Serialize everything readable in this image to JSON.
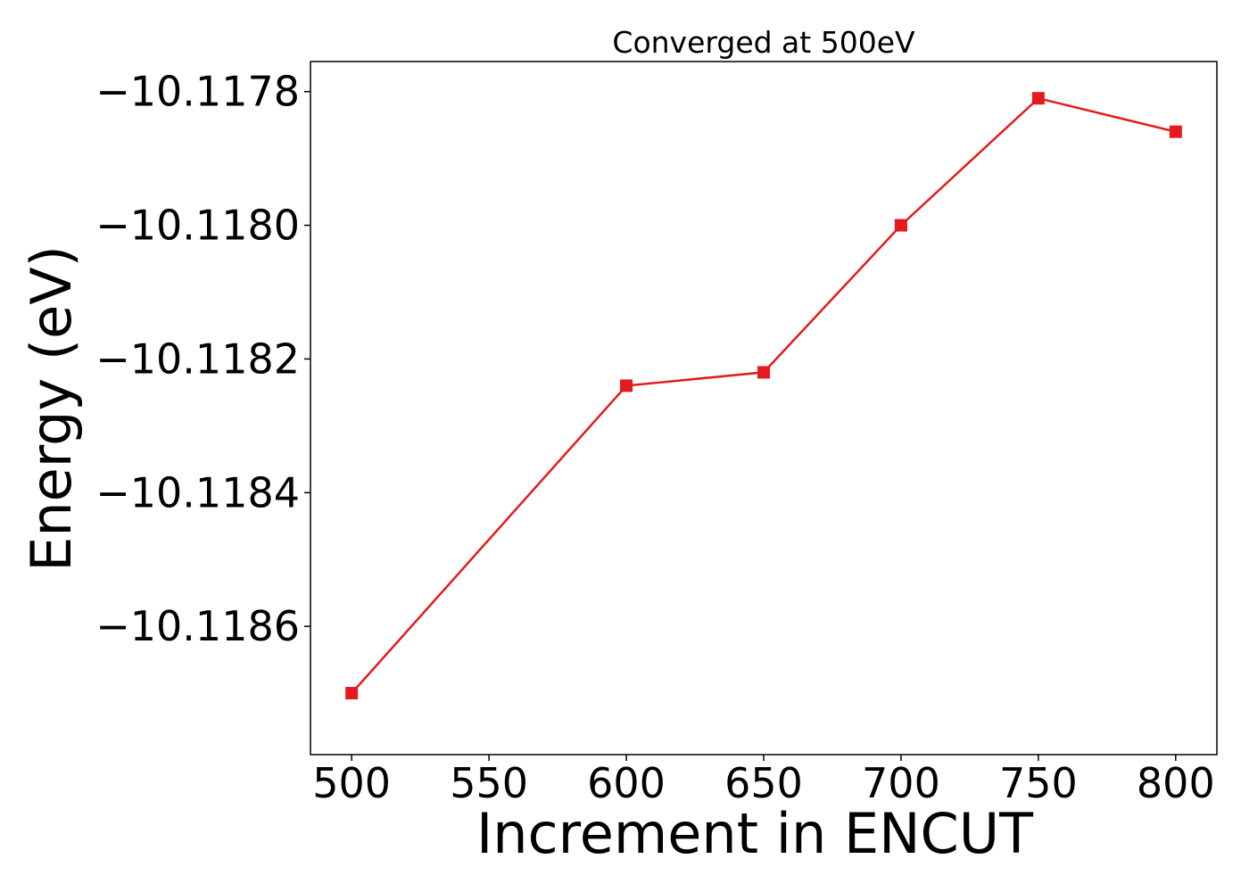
{
  "chart_data": {
    "type": "line",
    "title": "Converged at 500eV",
    "xlabel": "Increment in ENCUT",
    "ylabel": "Energy (eV)",
    "x": [
      500,
      600,
      650,
      700,
      750,
      800
    ],
    "series": [
      {
        "values": [
          -10.1187,
          -10.11824,
          -10.11822,
          -10.118,
          -10.11781,
          -10.11786
        ],
        "color": "#e41a1c",
        "marker": "square"
      }
    ],
    "xlim": [
      485,
      815
    ],
    "ylim": [
      -10.118792,
      -10.117755
    ],
    "xticks": [
      500,
      550,
      600,
      650,
      700,
      750,
      800
    ],
    "xtick_labels": [
      "500",
      "550",
      "600",
      "650",
      "700",
      "750",
      "800"
    ],
    "yticks": [
      -10.1178,
      -10.118,
      -10.1182,
      -10.1184,
      -10.1186
    ],
    "ytick_labels": [
      "−10.1178",
      "−10.1180",
      "−10.1182",
      "−10.1184",
      "−10.1186"
    ],
    "grid": false,
    "legend": false
  }
}
